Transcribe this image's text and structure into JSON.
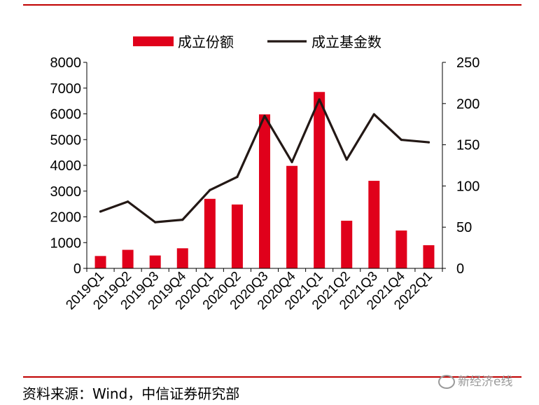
{
  "chart_data": {
    "type": "bar",
    "categories": [
      "2019Q1",
      "2019Q2",
      "2019Q3",
      "2019Q4",
      "2020Q1",
      "2020Q2",
      "2020Q3",
      "2020Q4",
      "2021Q1",
      "2021Q2",
      "2021Q3",
      "2021Q4",
      "2022Q1"
    ],
    "series": [
      {
        "name": "成立份额",
        "type": "bar",
        "axis": "left",
        "color": "#e0001b",
        "values": [
          480,
          720,
          500,
          780,
          2700,
          2480,
          5980,
          3980,
          6850,
          1850,
          3400,
          1470,
          900
        ]
      },
      {
        "name": "成立基金数",
        "type": "line",
        "axis": "right",
        "color": "#231815",
        "values": [
          69,
          81,
          56,
          59,
          95,
          111,
          185,
          129,
          205,
          132,
          187,
          156,
          153
        ]
      }
    ],
    "ylim": [
      0,
      8000
    ],
    "yticks": [
      0,
      1000,
      2000,
      3000,
      4000,
      5000,
      6000,
      7000,
      8000
    ],
    "y2lim": [
      0,
      250
    ],
    "y2ticks": [
      0,
      50,
      100,
      150,
      200,
      250
    ],
    "legend_position": "top",
    "grid": false
  },
  "footer": {
    "source": "资料来源：Wind，中信证券研究部",
    "watermark": "新经济e线"
  }
}
